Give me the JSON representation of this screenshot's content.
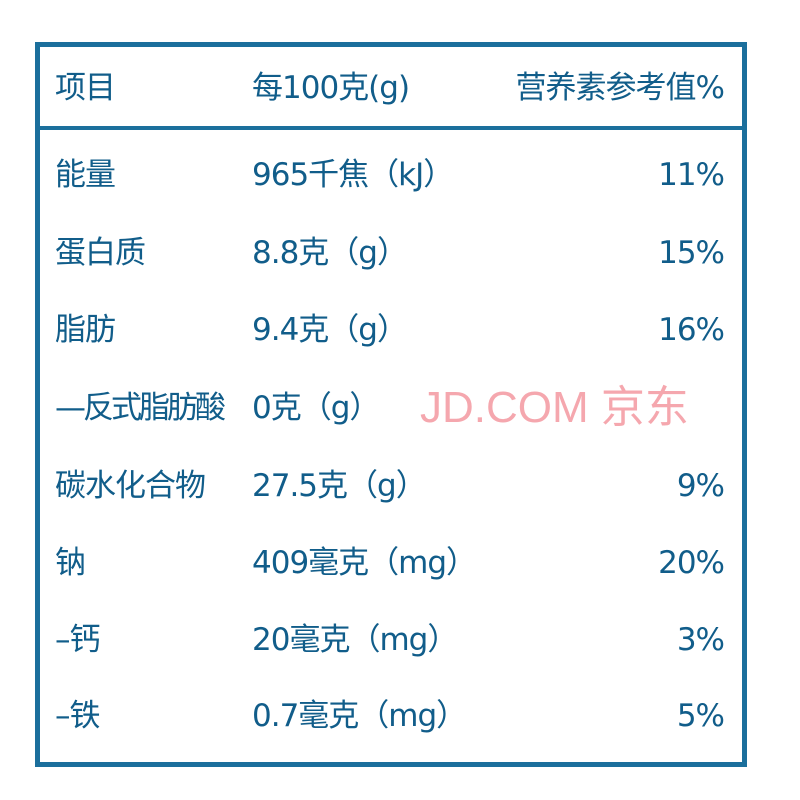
{
  "header": {
    "item": "项目",
    "per100": "每100克(g)",
    "nrv": "营养素参考值%"
  },
  "rows": [
    {
      "item": "能量",
      "amount": "965千焦（kJ）",
      "nrv": "11%"
    },
    {
      "item": "蛋白质",
      "amount": "8.8克（g）",
      "nrv": "15%"
    },
    {
      "item": "脂肪",
      "amount": "9.4克（g）",
      "nrv": "16%"
    },
    {
      "item": "—反式脂肪酸",
      "amount": "0克（g）",
      "nrv": ""
    },
    {
      "item": "碳水化合物",
      "amount": "27.5克（g）",
      "nrv": "9%"
    },
    {
      "item": "钠",
      "amount": "409毫克（mg）",
      "nrv": "20%"
    },
    {
      "item": "–钙",
      "amount": "20毫克（mg）",
      "nrv": "3%"
    },
    {
      "item": "–铁",
      "amount": "0.7毫克（mg）",
      "nrv": "5%"
    }
  ],
  "watermark": "JD.COM 京东",
  "colors": {
    "border": "#1b6f9c",
    "text": "#115d8a",
    "watermark": "#f07882"
  }
}
